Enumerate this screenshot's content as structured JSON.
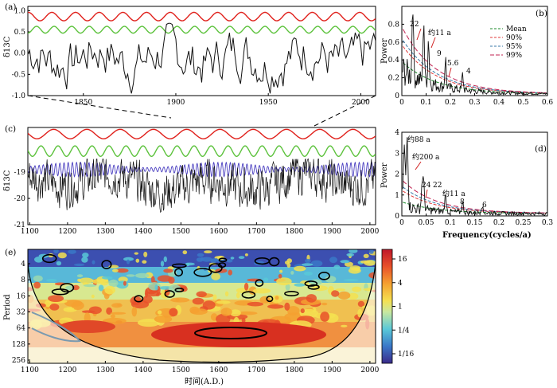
{
  "colors": {
    "red": "#e0201b",
    "green": "#5cc23c",
    "blue": "#4a3fc0",
    "black": "#111111",
    "mean": "#1a8a2a",
    "p90": "#e03a3a",
    "p95": "#3a7aa8",
    "p99": "#c02050"
  },
  "chart_data": [
    {
      "id": "a",
      "type": "line",
      "panel_label": "(a)",
      "ylabel": "δ13C",
      "xlim": [
        1820,
        2008
      ],
      "ylim": [
        -1.0,
        1.1
      ],
      "xticks": [
        1850,
        1900,
        1950,
        2000
      ],
      "yticks": [
        "1.0",
        "0.5",
        "0.0",
        "-0.5",
        "-1.0"
      ],
      "series": [
        {
          "name": "red",
          "offset": 0.86,
          "amplitude": 0.1,
          "period_years": 12.8
        },
        {
          "name": "green",
          "offset": 0.55,
          "amplitude": 0.08,
          "period_years": 9.5
        },
        {
          "name": "black",
          "mean": -0.1,
          "range": [
            -0.95,
            0.7
          ]
        }
      ]
    },
    {
      "id": "b",
      "type": "line",
      "panel_label": "(b)",
      "ylabel": "Power",
      "xlim": [
        0,
        0.6
      ],
      "ylim": [
        0,
        1.0
      ],
      "xticks": [
        "0",
        "0.1",
        "0.2",
        "0.3",
        "0.4",
        "0.5",
        "0.6"
      ],
      "yticks": [
        "0",
        "0.2",
        "0.4",
        "0.6",
        "0.8"
      ],
      "legend": [
        "Mean",
        "90%",
        "95%",
        "99%"
      ],
      "annotations": [
        "22",
        "约11 a",
        "9",
        "5.6",
        "4"
      ],
      "peaks": [
        {
          "label": "22",
          "freq": 0.045,
          "power": 0.88
        },
        {
          "label": "约11 a",
          "freq": 0.09,
          "power": 0.7
        },
        {
          "label": "9",
          "freq": 0.11,
          "power": 0.5
        },
        {
          "label": "5.6",
          "freq": 0.18,
          "power": 0.33
        },
        {
          "label": "4",
          "freq": 0.25,
          "power": 0.18
        }
      ]
    },
    {
      "id": "c",
      "type": "line",
      "panel_label": "(c)",
      "ylabel": "δ13C",
      "xlim": [
        1095,
        2015
      ],
      "ylim": [
        -21,
        -17.3
      ],
      "xticks": [
        1100,
        1200,
        1300,
        1400,
        1500,
        1600,
        1700,
        1800,
        1900,
        2000
      ],
      "yticks": [
        "-19",
        "-20",
        "-21"
      ],
      "series": [
        {
          "name": "red",
          "offset": -17.55,
          "amplitude": 0.18,
          "period_years": 88
        },
        {
          "name": "green",
          "offset": -18.2,
          "amplitude": 0.2,
          "period_years": 45
        },
        {
          "name": "blue",
          "offset": -18.9,
          "amplitude": 0.25,
          "period_years": 11
        },
        {
          "name": "black",
          "mean": -19.4,
          "range": [
            -21,
            -18.5
          ]
        }
      ]
    },
    {
      "id": "d",
      "type": "line",
      "panel_label": "(d)",
      "ylabel": "Power",
      "xlabel": "Frequency(cycles/a)",
      "xlim": [
        0,
        0.3
      ],
      "ylim": [
        0,
        4
      ],
      "xticks": [
        "0",
        "0.05",
        "0.1",
        "0.15",
        "0.2",
        "0.25",
        "0.3"
      ],
      "yticks": [
        "0",
        "1",
        "2",
        "3",
        "4"
      ],
      "annotations": [
        "约88 a",
        "约200 a",
        "24",
        "22",
        "约11 a",
        "8",
        "6"
      ],
      "peaks": [
        {
          "label": "约200 a",
          "freq": 0.005,
          "power": 2.8
        },
        {
          "label": "约88 a",
          "freq": 0.011,
          "power": 3.6
        },
        {
          "label": "24",
          "freq": 0.042,
          "power": 1.2
        },
        {
          "label": "22",
          "freq": 0.045,
          "power": 1.0
        },
        {
          "label": "约11 a",
          "freq": 0.09,
          "power": 0.75
        },
        {
          "label": "8",
          "freq": 0.125,
          "power": 0.45
        },
        {
          "label": "6",
          "freq": 0.165,
          "power": 0.35
        }
      ]
    },
    {
      "id": "e",
      "type": "heatmap",
      "panel_label": "(e)",
      "ylabel": "Period",
      "xlabel": "时间(A.D.)",
      "xlim": [
        1095,
        2015
      ],
      "xticks": [
        1100,
        1200,
        1300,
        1400,
        1500,
        1600,
        1700,
        1800,
        1900,
        2000
      ],
      "yticks": [
        "4",
        "8",
        "16",
        "32",
        "64",
        "128",
        "256"
      ],
      "colorbar_ticks": [
        "16",
        "4",
        "1",
        "1/4",
        "1/16"
      ],
      "note": "wavelet power spectrum; high power band near 64-128 yr centred ~1550-1700 A.D."
    }
  ]
}
